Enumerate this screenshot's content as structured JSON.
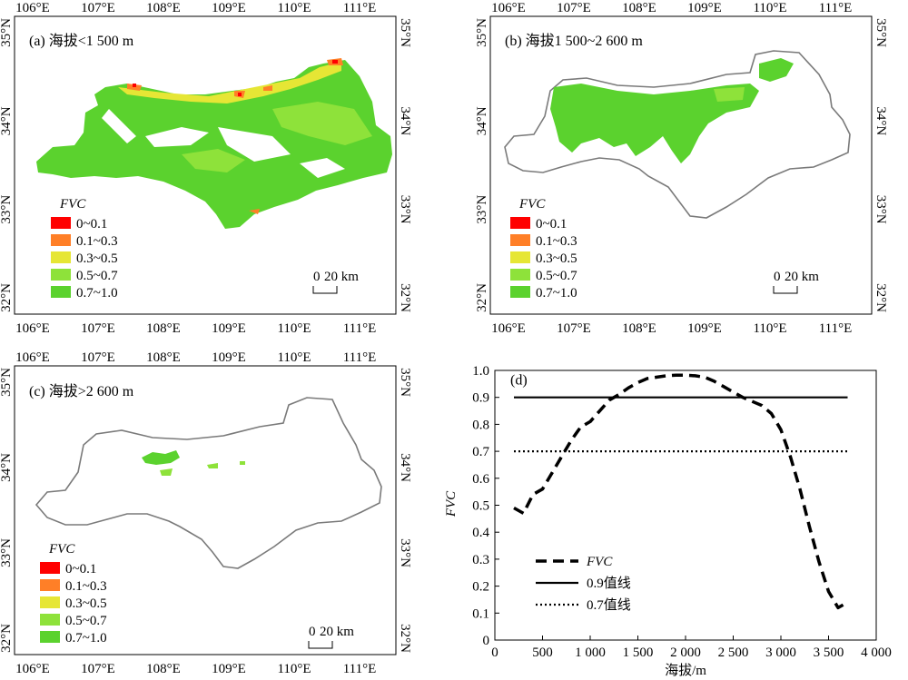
{
  "colors": {
    "fvc_0_0.1": "#ff0000",
    "fvc_0.1_0.3": "#ff7f27",
    "fvc_0.3_0.5": "#e6e635",
    "fvc_0.5_0.7": "#8ee23a",
    "fvc_0.7_1.0": "#5bd22e",
    "boundary": "#7a7a7a"
  },
  "maps": {
    "lon_ticks": [
      "106°E",
      "107°E",
      "108°E",
      "109°E",
      "110°E",
      "111°E"
    ],
    "lat_ticks": [
      "35°N",
      "34°N",
      "33°N",
      "32°N"
    ],
    "legend_title": "FVC",
    "legend_items": [
      "0~0.1",
      "0.1~0.3",
      "0.3~0.5",
      "0.5~0.7",
      "0.7~1.0"
    ],
    "scale_bar": {
      "zero": "0",
      "length": "20 km"
    },
    "panels": [
      {
        "id": "a",
        "label": "(a) 海拔<1 500 m"
      },
      {
        "id": "b",
        "label": "(b) 海拔1 500~2 600 m"
      },
      {
        "id": "c",
        "label": "(c) 海拔>2 600 m"
      }
    ]
  },
  "chart_data": {
    "type": "line",
    "panel_label": "(d)",
    "xlabel": "海拔/m",
    "ylabel": "FVC",
    "xlim": [
      0,
      4000
    ],
    "ylim": [
      0.0,
      1.0
    ],
    "x_ticks": [
      0,
      500,
      1000,
      1500,
      2000,
      2500,
      3000,
      3500,
      4000
    ],
    "x_tick_labels": [
      "0",
      "500",
      "1 000",
      "1 500",
      "2 000",
      "2 500",
      "3 000",
      "3 500",
      "4 000"
    ],
    "y_ticks": [
      0.0,
      0.1,
      0.2,
      0.3,
      0.4,
      0.5,
      0.6,
      0.7,
      0.8,
      0.9,
      1.0
    ],
    "y_tick_labels": [
      "0",
      "0.1",
      "0.2",
      "0.3",
      "0.4",
      "0.5",
      "0.6",
      "0.7",
      "0.8",
      "0.9",
      "1.0"
    ],
    "series": [
      {
        "name": "FVC",
        "style": "dashed",
        "x": [
          200,
          300,
          400,
          500,
          600,
          700,
          800,
          900,
          1000,
          1100,
          1200,
          1300,
          1400,
          1500,
          1600,
          1700,
          1800,
          1900,
          2000,
          2100,
          2200,
          2300,
          2400,
          2500,
          2600,
          2700,
          2800,
          2900,
          3000,
          3100,
          3200,
          3300,
          3400,
          3500,
          3600,
          3650,
          3700
        ],
        "y": [
          0.49,
          0.47,
          0.54,
          0.56,
          0.62,
          0.68,
          0.74,
          0.79,
          0.81,
          0.85,
          0.89,
          0.91,
          0.935,
          0.955,
          0.97,
          0.975,
          0.98,
          0.982,
          0.982,
          0.98,
          0.975,
          0.96,
          0.94,
          0.92,
          0.9,
          0.885,
          0.87,
          0.84,
          0.78,
          0.68,
          0.56,
          0.42,
          0.29,
          0.18,
          0.12,
          0.13,
          0.14
        ]
      },
      {
        "name": "0.9值线",
        "style": "solid",
        "x": [
          200,
          3700
        ],
        "y": [
          0.9,
          0.9
        ]
      },
      {
        "name": "0.7值线",
        "style": "dotted",
        "x": [
          200,
          3700
        ],
        "y": [
          0.7,
          0.7
        ]
      }
    ],
    "legend": [
      "FVC",
      "0.9值线",
      "0.7值线"
    ],
    "legend_position": "bottom-left"
  }
}
